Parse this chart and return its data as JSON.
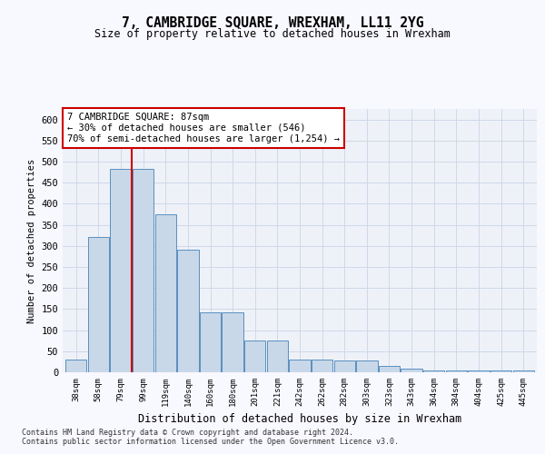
{
  "title": "7, CAMBRIDGE SQUARE, WREXHAM, LL11 2YG",
  "subtitle": "Size of property relative to detached houses in Wrexham",
  "xlabel": "Distribution of detached houses by size in Wrexham",
  "ylabel": "Number of detached properties",
  "categories": [
    "38sqm",
    "58sqm",
    "79sqm",
    "99sqm",
    "119sqm",
    "140sqm",
    "160sqm",
    "180sqm",
    "201sqm",
    "221sqm",
    "242sqm",
    "262sqm",
    "282sqm",
    "303sqm",
    "323sqm",
    "343sqm",
    "364sqm",
    "384sqm",
    "404sqm",
    "425sqm",
    "445sqm"
  ],
  "values": [
    30,
    322,
    483,
    483,
    375,
    290,
    143,
    143,
    75,
    75,
    30,
    30,
    27,
    27,
    15,
    8,
    5,
    5,
    5,
    5,
    5
  ],
  "bar_color": "#c8d8e8",
  "bar_edge_color": "#5a8fc0",
  "grid_color": "#d0d8e8",
  "annotation_box_color": "#cc0000",
  "property_line_x": 2.5,
  "annotation_lines": [
    "7 CAMBRIDGE SQUARE: 87sqm",
    "← 30% of detached houses are smaller (546)",
    "70% of semi-detached houses are larger (1,254) →"
  ],
  "footnote1": "Contains HM Land Registry data © Crown copyright and database right 2024.",
  "footnote2": "Contains public sector information licensed under the Open Government Licence v3.0.",
  "ylim": [
    0,
    625
  ],
  "yticks": [
    0,
    50,
    100,
    150,
    200,
    250,
    300,
    350,
    400,
    450,
    500,
    550,
    600
  ],
  "bg_color": "#f8f8ff",
  "plot_bg_color": "#eef2f8"
}
